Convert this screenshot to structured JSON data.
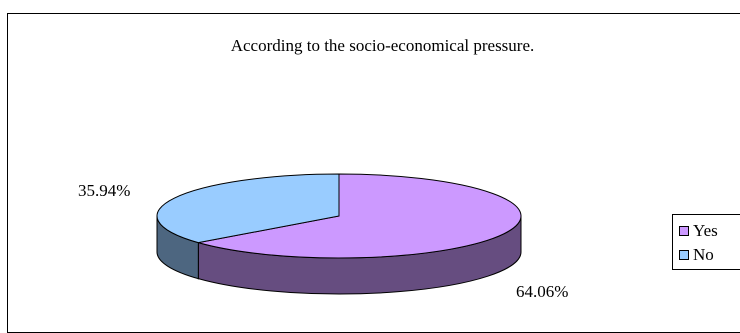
{
  "chart_data": {
    "type": "pie",
    "style": "3d",
    "title": "According to the socio-economical pressure.",
    "categories": [
      "Yes",
      "No"
    ],
    "values": [
      64.06,
      35.94
    ],
    "data_labels": [
      "64.06%",
      "35.94%"
    ],
    "colors": {
      "Yes": {
        "top": "#cc99ff",
        "side": "#664d80"
      },
      "No": {
        "top": "#99ccff",
        "side": "#4d6680"
      }
    },
    "legend": {
      "placement": "right",
      "entries": [
        "Yes",
        "No"
      ]
    }
  }
}
